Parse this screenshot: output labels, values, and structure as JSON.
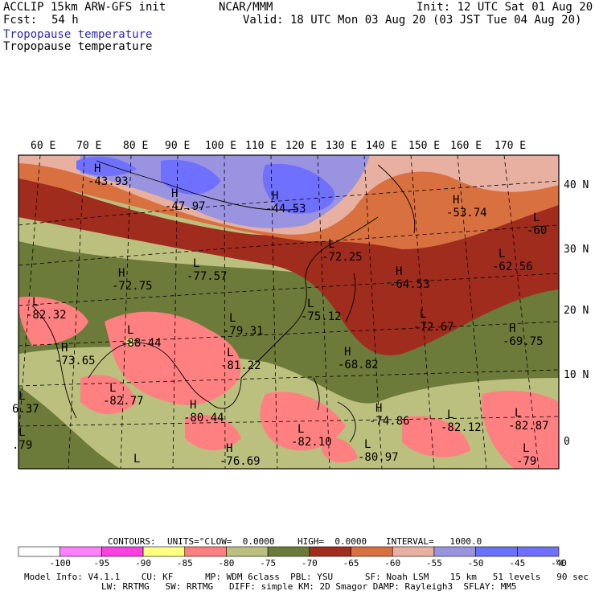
{
  "header": {
    "model_title": "ACCLIP 15km ARW-GFS init",
    "forecast_label": "Fcst:",
    "forecast_value": "54 h",
    "institution": "NCAR/MMM",
    "init": "Init: 12 UTC Sat 01 Aug 20",
    "valid": "Valid: 18 UTC Mon 03 Aug 20 (03 JST Tue 04 Aug 20)",
    "field_1": "Tropopause temperature",
    "field_2": "Tropopause temperature"
  },
  "map": {
    "lon_labels": [
      "60 E",
      "70 E",
      "80 E",
      "90 E",
      "100 E",
      "110 E",
      "120 E",
      "130 E",
      "140 E",
      "150 E",
      "160 E",
      "170 E"
    ],
    "lat_labels": [
      "40 N",
      "30 N",
      "20 N",
      "10 N",
      "0"
    ],
    "extremes": [
      {
        "kind": "H",
        "value": "-43.93"
      },
      {
        "kind": "H",
        "value": "-47.97"
      },
      {
        "kind": "H",
        "value": "-44.53"
      },
      {
        "kind": "H",
        "value": "-53.74"
      },
      {
        "kind": "L",
        "value": "-60"
      },
      {
        "kind": "L",
        "value": "-72.25"
      },
      {
        "kind": "L",
        "value": "-62.56"
      },
      {
        "kind": "H",
        "value": "-72.75"
      },
      {
        "kind": "L",
        "value": "-77.57"
      },
      {
        "kind": "H",
        "value": "-64.53"
      },
      {
        "kind": "L",
        "value": "-82.32"
      },
      {
        "kind": "L",
        "value": "-79.31"
      },
      {
        "kind": "L",
        "value": "-75.12"
      },
      {
        "kind": "L",
        "value": "-72.67"
      },
      {
        "kind": "H",
        "value": "-69.75"
      },
      {
        "kind": "L",
        "value": "-88.44"
      },
      {
        "kind": "H",
        "value": "-73.65"
      },
      {
        "kind": "L",
        "value": "-81.22"
      },
      {
        "kind": "H",
        "value": "-68.82"
      },
      {
        "kind": "L",
        "value": "-82.77"
      },
      {
        "kind": "H",
        "value": "-74.86"
      },
      {
        "kind": "L",
        "value": "-82.87"
      },
      {
        "kind": "H",
        "value": "-80.44"
      },
      {
        "kind": "L",
        "value": "-82.12"
      },
      {
        "kind": "L",
        "value": "-82.10"
      },
      {
        "kind": "L",
        "value": "-80.97"
      },
      {
        "kind": "H",
        "value": "-76.69"
      },
      {
        "kind": "L",
        "value": "-79"
      },
      {
        "kind": "L",
        "value": "6.37"
      },
      {
        "kind": "L",
        "value": ".79"
      },
      {
        "kind": "L",
        "value": ""
      }
    ]
  },
  "contours": {
    "label": "CONTOURS:",
    "units": "UNITS=°C",
    "low": "LOW=  0.0000",
    "high": "HIGH=  0.0000",
    "interval": "INTERVAL=   1000.0"
  },
  "colorbar": {
    "colors": [
      "#ffffff",
      "#ff80ff",
      "#ff40e0",
      "#ffff80",
      "#ff8080",
      "#bcc07f",
      "#6c7a3a",
      "#a02c1e",
      "#d97040",
      "#e8b0a0",
      "#9a94e0",
      "#6a70ff",
      "#7070ff"
    ],
    "labels": [
      "-100",
      "-95",
      "-90",
      "-85",
      "-80",
      "-75",
      "-70",
      "-65",
      "-60",
      "-55",
      "-50",
      "-45",
      "-40"
    ],
    "unit": "°C"
  },
  "footer": {
    "line1": "Model Info: V4.1.1    CU: KF      MP: WDM 6class  PBL: YSU      SF: Noah LSM    15 km   51 levels   90 sec",
    "line2": "LW: RRTMG   SW: RRTMG   DIFF: simple KM: 2D Smagor DAMP: Rayleigh3  SFLAY: MM5"
  }
}
